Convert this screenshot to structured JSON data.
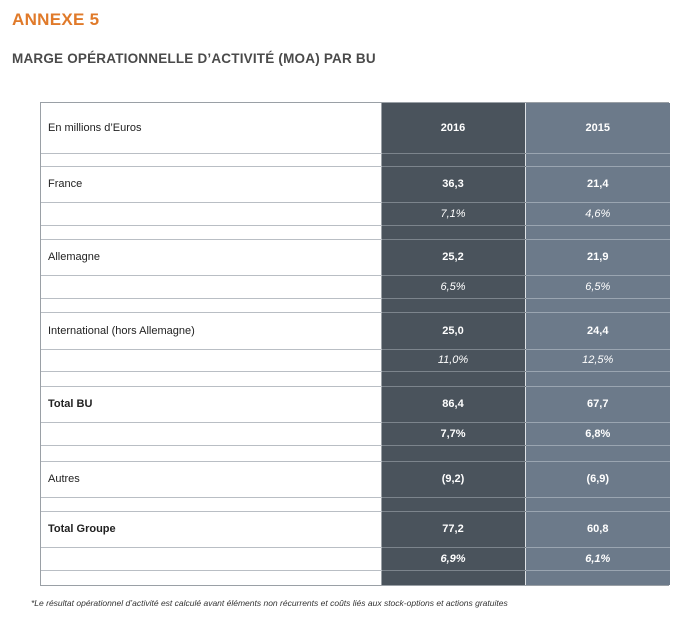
{
  "annex_title": "ANNEXE 5",
  "subtitle": "MARGE OPÉRATIONNELLE D’ACTIVITÉ (MOA) PAR BU",
  "table": {
    "unit_label": "En millions d’Euros",
    "col_2016": "2016",
    "col_2015": "2015",
    "rows": {
      "france": {
        "label": "France",
        "v2016": "36,3",
        "v2015": "21,4",
        "p2016": "7,1%",
        "p2015": "4,6%"
      },
      "allemagne": {
        "label": "Allemagne",
        "v2016": "25,2",
        "v2015": "21,9",
        "p2016": "6,5%",
        "p2015": "6,5%"
      },
      "international": {
        "label": "International (hors Allemagne)",
        "v2016": "25,0",
        "v2015": "24,4",
        "p2016": "11,0%",
        "p2015": "12,5%"
      },
      "total_bu": {
        "label": "Total BU",
        "v2016": "86,4",
        "v2015": "67,7",
        "p2016": "7,7%",
        "p2015": "6,8%"
      },
      "autres": {
        "label": "Autres",
        "v2016": "(9,2)",
        "v2015": "(6,9)"
      },
      "total_groupe": {
        "label": "Total Groupe",
        "v2016": "77,2",
        "v2015": "60,8",
        "p2016": "6,9%",
        "p2015": "6,1%"
      }
    }
  },
  "footnote": "*Le résultat opérationnel d’activité est calculé avant éléments non récurrents et coûts liés aux stock-options et actions gratuites"
}
